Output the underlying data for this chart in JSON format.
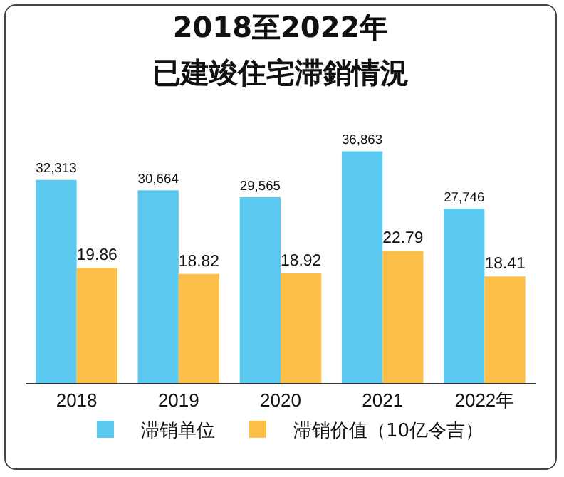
{
  "chart_data": {
    "type": "bar",
    "title": "2018至2022年",
    "subtitle": "已建竣住宅滞銷情況",
    "categories": [
      "2018",
      "2019",
      "2020",
      "2021",
      "2022年"
    ],
    "series": [
      {
        "name": "滞销单位",
        "color": "#5bc8f0",
        "values": [
          32313,
          30664,
          29565,
          36863,
          27746
        ],
        "value_labels": [
          "32,313",
          "30,664",
          "29,565",
          "36,863",
          "27,746"
        ]
      },
      {
        "name": "滞销价值（10亿令吉）",
        "color": "#fbbf4a",
        "axis": "y2",
        "values": [
          19.86,
          18.82,
          18.92,
          22.79,
          18.41
        ],
        "value_labels": [
          "19.86",
          "18.82",
          "18.92",
          "22.79",
          "18.41"
        ]
      }
    ],
    "tick_labels": "x",
    "grid": false,
    "legend": "bottom"
  }
}
